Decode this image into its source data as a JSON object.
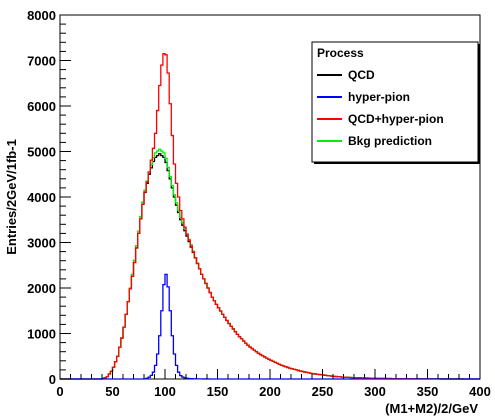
{
  "chart_data": {
    "type": "line",
    "title": "",
    "xlabel": "(M1+M2)/2/GeV",
    "ylabel": "Entries/2GeV/1fb-1",
    "xlim": [
      0,
      400
    ],
    "ylim": [
      0,
      8000
    ],
    "x_ticks": [
      0,
      50,
      100,
      150,
      200,
      250,
      300,
      350,
      400
    ],
    "y_ticks": [
      0,
      1000,
      2000,
      3000,
      4000,
      5000,
      6000,
      7000,
      8000
    ],
    "grid": false,
    "histogram_step": true,
    "bin_width": 2,
    "legend": {
      "title": "Process",
      "position": "top-right",
      "entries": [
        "QCD",
        "hyper-pion",
        "QCD+hyper-pion",
        "Bkg prediction"
      ]
    },
    "series": [
      {
        "name": "QCD",
        "color": "#000000",
        "x": [
          40,
          45,
          50,
          55,
          60,
          65,
          70,
          75,
          80,
          85,
          90,
          95,
          100,
          105,
          110,
          115,
          120,
          125,
          130,
          135,
          140,
          145,
          150,
          160,
          170,
          180,
          190,
          200,
          210,
          220,
          230,
          240,
          250,
          260,
          270,
          280,
          300,
          320,
          340,
          360,
          380,
          400
        ],
        "y": [
          0,
          50,
          200,
          500,
          1000,
          1700,
          2400,
          3200,
          4000,
          4500,
          4850,
          4950,
          4850,
          4400,
          3900,
          3500,
          3200,
          2900,
          2600,
          2300,
          2050,
          1800,
          1600,
          1250,
          950,
          720,
          550,
          420,
          310,
          230,
          170,
          120,
          90,
          60,
          40,
          30,
          15,
          8,
          4,
          2,
          1,
          0
        ]
      },
      {
        "name": "hyper-pion",
        "color": "#0000ff",
        "x": [
          80,
          84,
          88,
          90,
          92,
          94,
          96,
          98,
          100,
          102,
          104,
          106,
          108,
          110,
          112,
          114,
          116,
          120,
          124,
          130,
          140,
          150,
          160
        ],
        "y": [
          0,
          20,
          100,
          200,
          400,
          700,
          1200,
          1800,
          2350,
          2250,
          1800,
          1200,
          700,
          400,
          200,
          100,
          50,
          20,
          8,
          3,
          1,
          0,
          0
        ]
      },
      {
        "name": "QCD+hyper-pion",
        "color": "#ff0000",
        "x": [
          40,
          45,
          50,
          55,
          60,
          65,
          70,
          75,
          80,
          85,
          90,
          92,
          94,
          96,
          98,
          100,
          102,
          104,
          106,
          108,
          110,
          115,
          120,
          125,
          130,
          135,
          140,
          145,
          150,
          160,
          170,
          180,
          190,
          200,
          210,
          220,
          230,
          240,
          250,
          260,
          270,
          280,
          300,
          320,
          340,
          360,
          380,
          400
        ],
        "y": [
          0,
          50,
          200,
          500,
          1000,
          1700,
          2400,
          3200,
          4000,
          4550,
          5200,
          5600,
          6200,
          6700,
          7100,
          7200,
          7050,
          6400,
          5700,
          5000,
          4450,
          3700,
          3250,
          2920,
          2600,
          2300,
          2050,
          1800,
          1600,
          1250,
          950,
          720,
          550,
          420,
          310,
          230,
          170,
          120,
          90,
          60,
          40,
          30,
          15,
          8,
          4,
          2,
          1,
          0
        ]
      },
      {
        "name": "Bkg prediction",
        "color": "#00ee00",
        "x": [
          40,
          45,
          50,
          55,
          60,
          65,
          70,
          75,
          80,
          85,
          90,
          95,
          100,
          105,
          110,
          115,
          120,
          125,
          130,
          135,
          140,
          145,
          150,
          160,
          170,
          180,
          190,
          200,
          210,
          220,
          230,
          240,
          250,
          260,
          270,
          280,
          300,
          320,
          340,
          360,
          380,
          400
        ],
        "y": [
          0,
          50,
          200,
          500,
          1000,
          1700,
          2450,
          3250,
          4050,
          4550,
          4950,
          5050,
          4950,
          4450,
          3950,
          3550,
          3250,
          2950,
          2600,
          2300,
          2050,
          1800,
          1600,
          1250,
          950,
          720,
          550,
          420,
          310,
          230,
          170,
          120,
          90,
          60,
          40,
          30,
          15,
          8,
          4,
          2,
          1,
          0
        ]
      }
    ]
  }
}
